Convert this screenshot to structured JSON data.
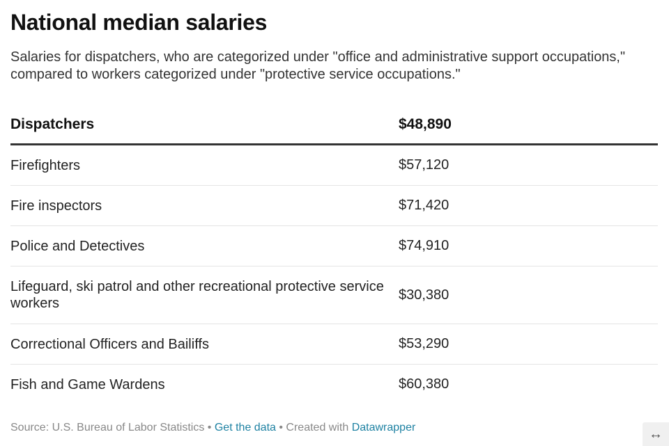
{
  "title": "National median salaries",
  "subtitle": "Salaries for dispatchers, who are categorized under \"office and administrative support occupations,\" compared to workers categorized under \"protective service occupations.\"",
  "chart_data": {
    "type": "table",
    "header": {
      "label": "Dispatchers",
      "value": "$48,890"
    },
    "rows": [
      {
        "label": "Firefighters",
        "value": "$57,120"
      },
      {
        "label": "Fire inspectors",
        "value": "$71,420"
      },
      {
        "label": "Police and Detectives",
        "value": "$74,910"
      },
      {
        "label": "Lifeguard, ski patrol and other recreational protective service workers",
        "value": "$30,380"
      },
      {
        "label": "Correctional Officers and Bailiffs",
        "value": "$53,290"
      },
      {
        "label": "Fish and Game Wardens",
        "value": "$60,380"
      }
    ]
  },
  "footer": {
    "source": "Source: U.S. Bureau of Labor Statistics",
    "separator": " • ",
    "get_data_label": "Get the data",
    "created_with_label": "Created with ",
    "datawrapper_label": "Datawrapper"
  },
  "resize_icon": "↔"
}
